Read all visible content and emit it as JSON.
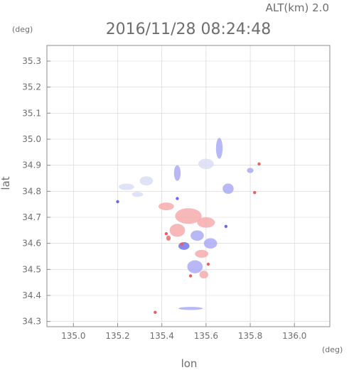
{
  "header": {
    "altitude_label": "ALT(km) 2.0",
    "timestamp": "2016/11/28 08:24:48"
  },
  "chart_data": {
    "type": "heatmap",
    "xlabel": "lon",
    "ylabel": "lat",
    "x_unit": "(deg)",
    "y_unit": "(deg)",
    "xlim": [
      134.88,
      136.16
    ],
    "ylim": [
      34.28,
      35.36
    ],
    "x_ticks": [
      135.0,
      135.2,
      135.4,
      135.6,
      135.8,
      136.0
    ],
    "x_tick_labels": [
      "135.0",
      "135.2",
      "135.4",
      "135.6",
      "135.8",
      "136.0"
    ],
    "y_ticks": [
      34.3,
      34.4,
      34.5,
      34.6,
      34.7,
      34.8,
      34.9,
      35.0,
      35.1,
      35.2,
      35.3
    ],
    "y_tick_labels": [
      "34.3",
      "34.4",
      "34.5",
      "34.6",
      "34.7",
      "34.8",
      "34.9",
      "35.0",
      "35.1",
      "35.2",
      "35.3"
    ],
    "grid": true,
    "colors": {
      "positive": "#f4a6a6",
      "negative": "#a6a6f4",
      "strong_positive": "#e86060",
      "strong_negative": "#6a6ae8",
      "faint_negative": "#d8dcf4",
      "axis": "#8c8c8c",
      "text": "#6e6e6e"
    },
    "regions": [
      {
        "lon": 135.24,
        "lat": 34.817,
        "w": 0.07,
        "h": 0.025,
        "level": "faint_negative"
      },
      {
        "lon": 135.33,
        "lat": 34.84,
        "w": 0.06,
        "h": 0.035,
        "level": "faint_negative"
      },
      {
        "lon": 135.29,
        "lat": 34.788,
        "w": 0.05,
        "h": 0.02,
        "level": "faint_negative"
      },
      {
        "lon": 135.6,
        "lat": 34.905,
        "w": 0.07,
        "h": 0.04,
        "level": "faint_negative"
      },
      {
        "lon": 135.66,
        "lat": 34.965,
        "w": 0.03,
        "h": 0.08,
        "level": "negative"
      },
      {
        "lon": 135.47,
        "lat": 34.87,
        "w": 0.03,
        "h": 0.06,
        "level": "negative"
      },
      {
        "lon": 135.42,
        "lat": 34.742,
        "w": 0.07,
        "h": 0.03,
        "level": "positive"
      },
      {
        "lon": 135.52,
        "lat": 34.705,
        "w": 0.12,
        "h": 0.06,
        "level": "positive"
      },
      {
        "lon": 135.6,
        "lat": 34.68,
        "w": 0.08,
        "h": 0.04,
        "level": "positive"
      },
      {
        "lon": 135.47,
        "lat": 34.65,
        "w": 0.07,
        "h": 0.05,
        "level": "positive"
      },
      {
        "lon": 135.56,
        "lat": 34.63,
        "w": 0.06,
        "h": 0.04,
        "level": "negative"
      },
      {
        "lon": 135.62,
        "lat": 34.6,
        "w": 0.06,
        "h": 0.04,
        "level": "negative"
      },
      {
        "lon": 135.5,
        "lat": 34.59,
        "w": 0.05,
        "h": 0.03,
        "level": "strong_negative"
      },
      {
        "lon": 135.58,
        "lat": 34.56,
        "w": 0.06,
        "h": 0.03,
        "level": "positive"
      },
      {
        "lon": 135.55,
        "lat": 34.51,
        "w": 0.07,
        "h": 0.05,
        "level": "negative"
      },
      {
        "lon": 135.59,
        "lat": 34.48,
        "w": 0.04,
        "h": 0.03,
        "level": "positive"
      },
      {
        "lon": 135.43,
        "lat": 34.62,
        "w": 0.02,
        "h": 0.02,
        "level": "strong_positive"
      },
      {
        "lon": 135.7,
        "lat": 34.81,
        "w": 0.05,
        "h": 0.04,
        "level": "negative"
      },
      {
        "lon": 135.8,
        "lat": 34.88,
        "w": 0.03,
        "h": 0.02,
        "level": "negative"
      },
      {
        "lon": 135.53,
        "lat": 34.35,
        "w": 0.11,
        "h": 0.012,
        "level": "negative"
      }
    ],
    "points": [
      {
        "lon": 135.37,
        "lat": 34.335,
        "level": "strong_positive"
      },
      {
        "lon": 135.42,
        "lat": 34.637,
        "level": "strong_positive"
      },
      {
        "lon": 135.61,
        "lat": 34.52,
        "level": "strong_positive"
      },
      {
        "lon": 135.84,
        "lat": 34.905,
        "level": "strong_positive"
      },
      {
        "lon": 135.82,
        "lat": 34.795,
        "level": "strong_positive"
      },
      {
        "lon": 135.49,
        "lat": 34.596,
        "level": "strong_positive"
      },
      {
        "lon": 135.53,
        "lat": 34.475,
        "level": "strong_positive"
      },
      {
        "lon": 135.2,
        "lat": 34.76,
        "level": "strong_negative"
      },
      {
        "lon": 135.69,
        "lat": 34.665,
        "level": "strong_negative"
      },
      {
        "lon": 135.47,
        "lat": 34.772,
        "level": "strong_negative"
      }
    ]
  }
}
